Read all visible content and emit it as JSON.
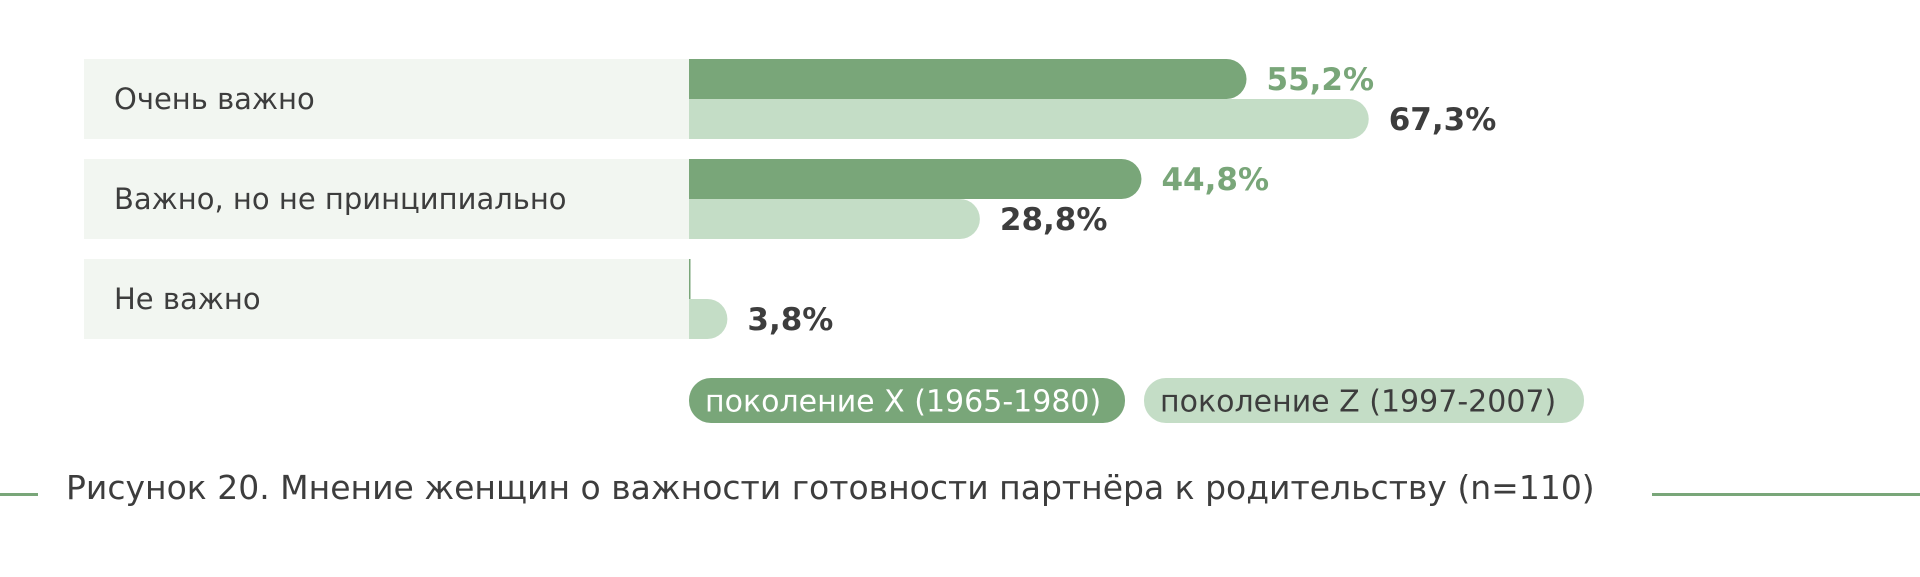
{
  "colors": {
    "series_x": "#79a679",
    "series_z": "#c4ddc6",
    "label_x": "#79a679",
    "label_z": "#3d3d3d",
    "row_bg": "#f2f6f1",
    "legend_text_x": "#ffffff",
    "legend_text_z": "#3d3d3d"
  },
  "chart_data": {
    "type": "bar",
    "orientation": "horizontal",
    "categories": [
      "Очень важно",
      "Важно, но не принципиально",
      "Не важно"
    ],
    "series": [
      {
        "name": "поколение X (1965-1980)",
        "values": [
          55.2,
          44.8,
          0
        ]
      },
      {
        "name": "поколение Z (1997-2007)",
        "values": [
          67.3,
          28.8,
          3.8
        ]
      }
    ],
    "value_labels": [
      [
        "55,2%",
        "44,8%",
        ""
      ],
      [
        "67,3%",
        "28,8%",
        "3,8%"
      ]
    ],
    "xlim": [
      0,
      100
    ],
    "grid": false,
    "legend_position": "bottom"
  },
  "caption": "Рисунок 20. Мнение женщин о важности готовности партнёра к родительству (n=110)"
}
